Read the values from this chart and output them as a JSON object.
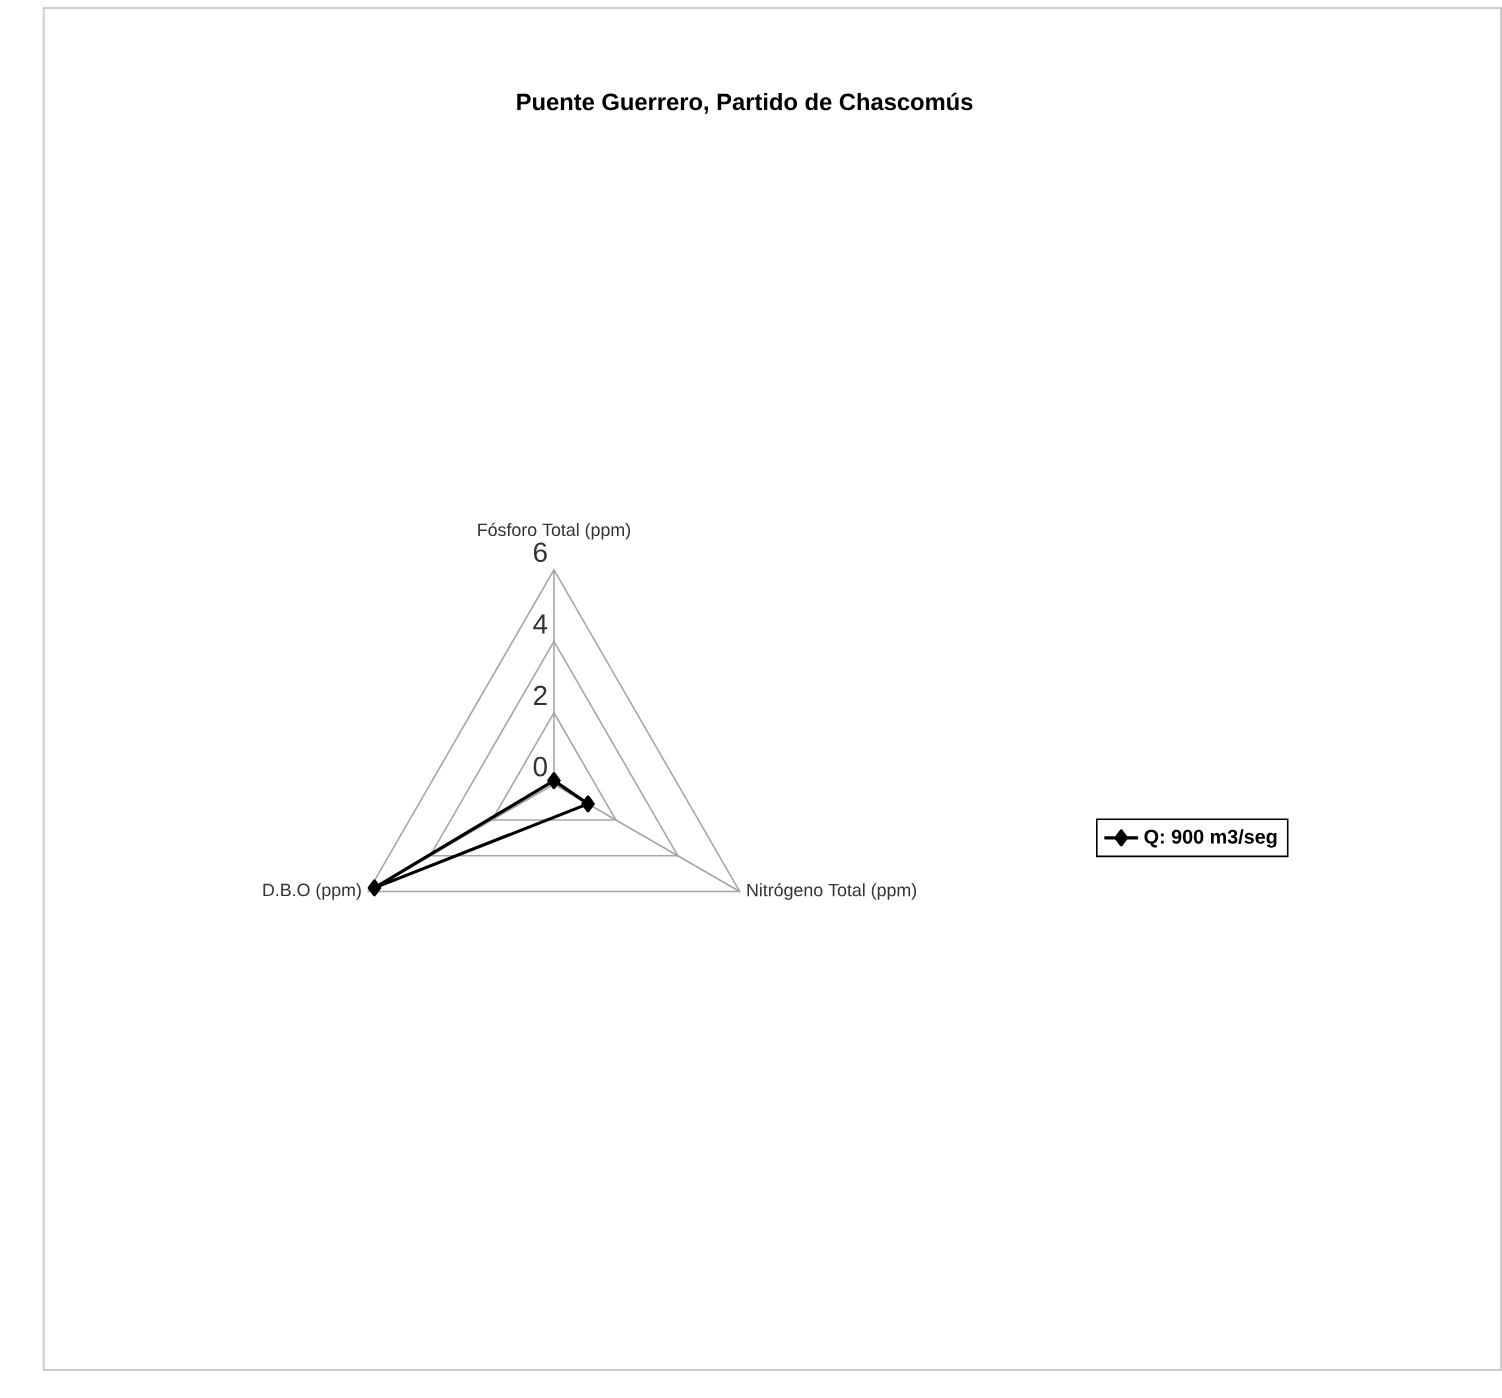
{
  "chart_data": {
    "type": "radar",
    "title": "Puente Guerrero, Partido de Chascomús",
    "categories": [
      "Fósforo Total (ppm)",
      "Nitrógeno Total (ppm)",
      "D.B.O (ppm)"
    ],
    "series": [
      {
        "name": "**Q: 900 m3/seg**",
        "color": "#000000",
        "values": [
          0.1,
          1.1,
          5.8
        ]
      }
    ],
    "ylim": [
      0,
      6
    ],
    "yticks": [
      0,
      2,
      4,
      6
    ],
    "grid": true,
    "legend": "right",
    "marker": "diamond",
    "line_style": "solid"
  }
}
